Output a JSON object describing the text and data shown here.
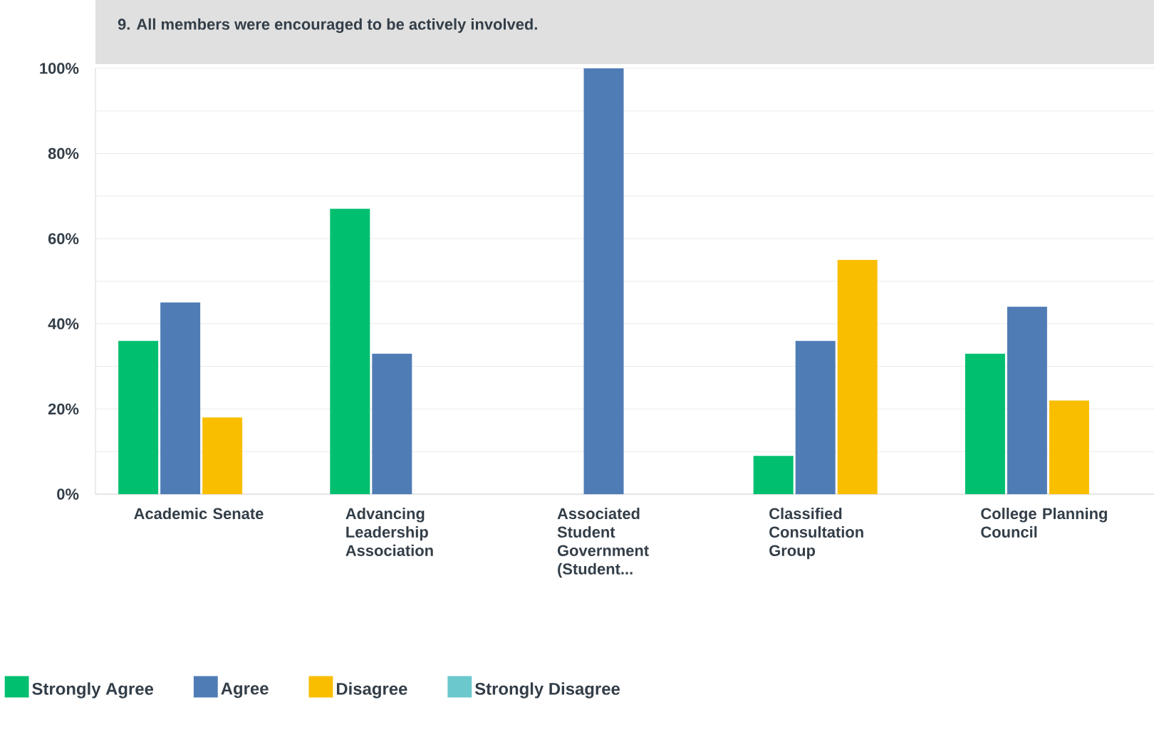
{
  "chart_data": {
    "type": "bar",
    "title": "9. All members were encouraged to be actively involved.",
    "categories": [
      "Academic Senate",
      "Advancing Leadership Association",
      "Associated Student Government (Student...",
      "Classified Consultation Group",
      "College Planning Council"
    ],
    "series": [
      {
        "name": "Strongly Agree",
        "color": "#00bf6f",
        "values": [
          36,
          67,
          0,
          9,
          33
        ]
      },
      {
        "name": "Agree",
        "color": "#507cb6",
        "values": [
          45,
          33,
          100,
          36,
          44
        ]
      },
      {
        "name": "Disagree",
        "color": "#f9be00",
        "values": [
          18,
          0,
          0,
          55,
          22
        ]
      },
      {
        "name": "Strongly Disagree",
        "color": "#6bc8cd",
        "values": [
          0,
          0,
          0,
          0,
          0
        ]
      }
    ],
    "ylim": [
      0,
      100
    ],
    "yticks": [
      {
        "value": 0,
        "label": "0%"
      },
      {
        "value": 10,
        "label": null
      },
      {
        "value": 20,
        "label": "20%"
      },
      {
        "value": 30,
        "label": null
      },
      {
        "value": 40,
        "label": "40%"
      },
      {
        "value": 50,
        "label": null
      },
      {
        "value": 60,
        "label": "60%"
      },
      {
        "value": 70,
        "label": null
      },
      {
        "value": 80,
        "label": "80%"
      },
      {
        "value": 90,
        "label": null
      },
      {
        "value": 100,
        "label": "100%"
      }
    ],
    "grid": "y",
    "legend": "bottom"
  }
}
